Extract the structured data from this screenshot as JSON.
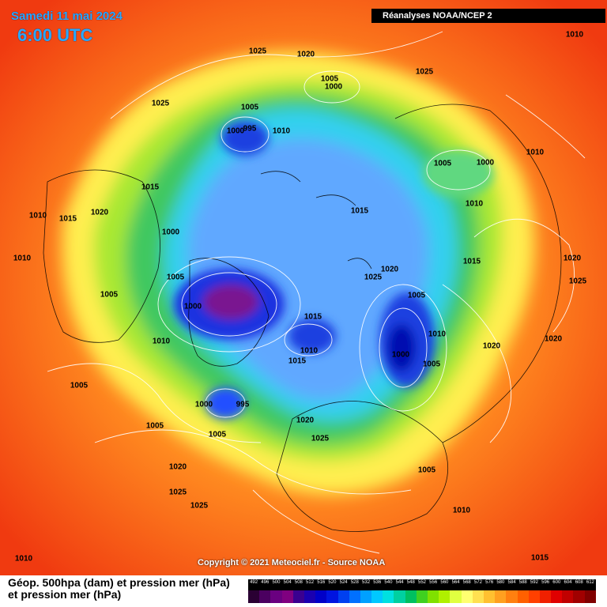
{
  "header": {
    "date": "Samedi 11 mai 2024",
    "time": "6:00 UTC",
    "source": "Réanalyses NOAA/NCEP 2"
  },
  "footer": {
    "legend_title_1": "Géop. 500hpa (dam) et pression mer (hPa)",
    "legend_title_2": "et pression mer (hPa)",
    "copyright": "Copyright © 2021 Meteociel.fr - Source NOAA"
  },
  "scale": {
    "ticks": [
      "492",
      "496",
      "500",
      "504",
      "508",
      "512",
      "516",
      "520",
      "524",
      "528",
      "532",
      "536",
      "540",
      "544",
      "548",
      "552",
      "556",
      "560",
      "564",
      "568",
      "572",
      "576",
      "580",
      "584",
      "588",
      "592",
      "596",
      "600",
      "604",
      "608",
      "612"
    ],
    "colors": [
      "#2a0033",
      "#4b0060",
      "#6a0080",
      "#800080",
      "#3a0090",
      "#1a00b0",
      "#0000c8",
      "#0014e0",
      "#0040f0",
      "#0070ff",
      "#00a0ff",
      "#00c8ff",
      "#00e0e0",
      "#00d0a0",
      "#00c060",
      "#40d020",
      "#80e000",
      "#b0f000",
      "#e0ff40",
      "#ffff70",
      "#ffe050",
      "#ffc030",
      "#ffa020",
      "#ff8010",
      "#ff6000",
      "#ff4000",
      "#f02000",
      "#e00000",
      "#c00000",
      "#a00000",
      "#800000"
    ]
  },
  "pressure_labels": [
    {
      "text": "1025"
    },
    {
      "text": "1020"
    },
    {
      "text": "1025"
    },
    {
      "text": "1010"
    },
    {
      "text": "1005"
    },
    {
      "text": "1000"
    },
    {
      "text": "1025"
    },
    {
      "text": "1005"
    },
    {
      "text": "1000"
    },
    {
      "text": "995"
    },
    {
      "text": "1010"
    },
    {
      "text": "1005"
    },
    {
      "text": "1000"
    },
    {
      "text": "1010"
    },
    {
      "text": "1015"
    },
    {
      "text": "1015"
    },
    {
      "text": "1020"
    },
    {
      "text": "1010"
    },
    {
      "text": "1010"
    },
    {
      "text": "1015"
    },
    {
      "text": "1000"
    },
    {
      "text": "1015"
    },
    {
      "text": "1020"
    },
    {
      "text": "1025"
    },
    {
      "text": "1010"
    },
    {
      "text": "1005"
    },
    {
      "text": "1000"
    },
    {
      "text": "1005"
    },
    {
      "text": "1025"
    },
    {
      "text": "1020"
    },
    {
      "text": "1005"
    },
    {
      "text": "1015"
    },
    {
      "text": "1010"
    },
    {
      "text": "1015"
    },
    {
      "text": "1010"
    },
    {
      "text": "1000"
    },
    {
      "text": "1005"
    },
    {
      "text": "1020"
    },
    {
      "text": "1020"
    },
    {
      "text": "1010"
    },
    {
      "text": "1005"
    },
    {
      "text": "1000"
    },
    {
      "text": "995"
    },
    {
      "text": "1005"
    },
    {
      "text": "1005"
    },
    {
      "text": "1020"
    },
    {
      "text": "1025"
    },
    {
      "text": "1005"
    },
    {
      "text": "1020"
    },
    {
      "text": "1025"
    },
    {
      "text": "1025"
    },
    {
      "text": "1010"
    },
    {
      "text": "1010"
    },
    {
      "text": "1015"
    }
  ]
}
